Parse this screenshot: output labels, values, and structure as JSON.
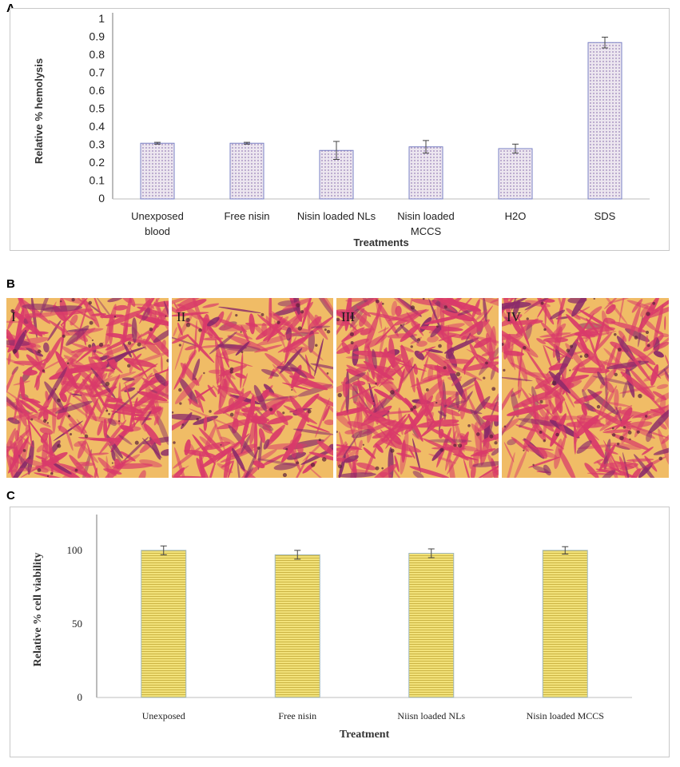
{
  "panels": {
    "a_letter": "A",
    "b_letter": "B",
    "c_letter": "C"
  },
  "micrographs": [
    {
      "label": "I"
    },
    {
      "label": "II"
    },
    {
      "label": "III"
    },
    {
      "label": "IV"
    }
  ],
  "colors": {
    "bar_a_fill": "#ece6ef",
    "bar_a_dots": "#9b82b8",
    "bar_a_edge": "#7a80c4",
    "bar_c_fill": "#f2e27a",
    "bar_c_stripe": "#cbb444",
    "bar_c_edge": "#9fb8c0",
    "stain_base": "#f0bc66",
    "stain_cells": "#d93a6a"
  },
  "chart_data": [
    {
      "id": "A",
      "type": "bar",
      "title": "",
      "xlabel": "Treatments",
      "ylabel": "Relative % hemolysis",
      "categories": [
        [
          "Unexposed",
          "blood"
        ],
        [
          "Free nisin"
        ],
        [
          "Nisin loaded NLs"
        ],
        [
          "Nisin loaded",
          "MCCS"
        ],
        [
          "H2O"
        ],
        [
          "SDS"
        ]
      ],
      "values": [
        0.31,
        0.31,
        0.27,
        0.29,
        0.28,
        0.87
      ],
      "errors": [
        0.005,
        0.005,
        0.05,
        0.035,
        0.025,
        0.03
      ],
      "ylim": [
        0,
        1
      ],
      "yticks": [
        "0",
        "0.1",
        "0.2",
        "0.3",
        "0.4",
        "0.5",
        "0.6",
        "0.7",
        "0.8",
        "0.9",
        "1"
      ],
      "grid": false
    },
    {
      "id": "C",
      "type": "bar",
      "title": "",
      "xlabel": "Treatment",
      "ylabel": "Relative % cell viability",
      "categories": [
        [
          "Unexposed"
        ],
        [
          "Free nisin"
        ],
        [
          "Niisn loaded NLs"
        ],
        [
          "Nisin loaded MCCS"
        ]
      ],
      "values": [
        100,
        97,
        98,
        100
      ],
      "errors": [
        3,
        3,
        3,
        2.5
      ],
      "ylim": [
        0,
        120
      ],
      "yticks": [
        "0",
        "50",
        "100"
      ],
      "grid": false
    }
  ]
}
